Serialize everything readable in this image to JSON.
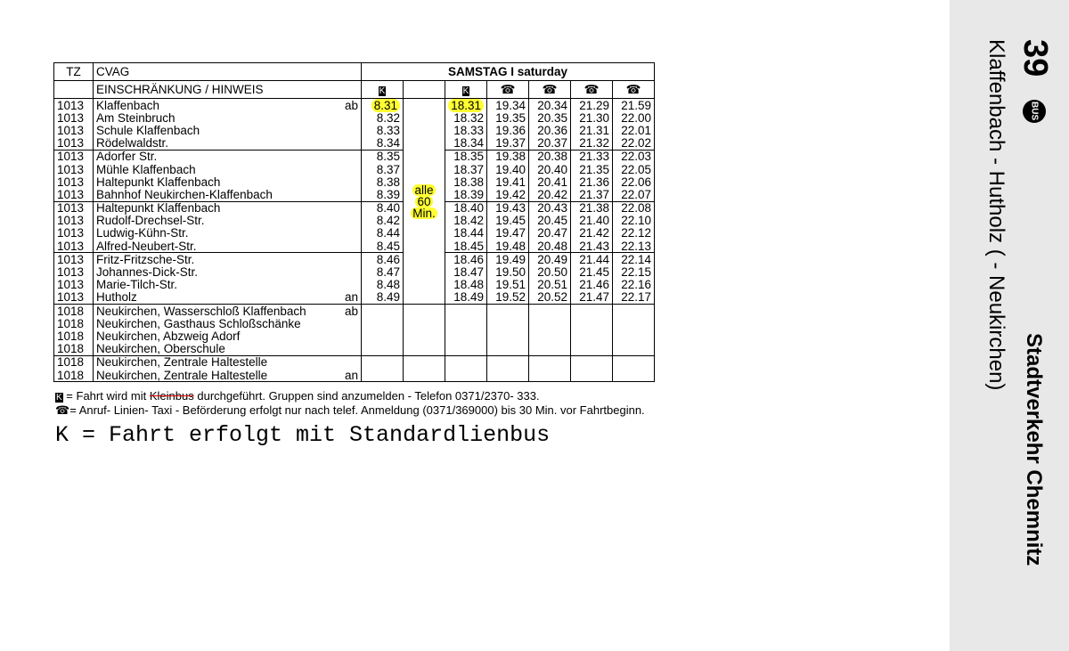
{
  "header": {
    "tz": "TZ",
    "company": "CVAG",
    "day": "SAMSTAG I saturday",
    "hint": "EINSCHRÄNKUNG / HINWEIS",
    "column_symbols": [
      "K",
      "",
      "K",
      "☎",
      "☎",
      "☎",
      "☎"
    ]
  },
  "interval": [
    "alle",
    "60",
    "Min."
  ],
  "highlight_color": "#ffff33",
  "stops": [
    {
      "tz": "1013",
      "name": "Klaffenbach",
      "mark": "ab",
      "times": [
        "8.31",
        "18.31",
        "19.34",
        "20.34",
        "21.29",
        "21.59"
      ]
    },
    {
      "tz": "1013",
      "name": "Am Steinbruch",
      "mark": "",
      "times": [
        "8.32",
        "18.32",
        "19.35",
        "20.35",
        "21.30",
        "22.00"
      ]
    },
    {
      "tz": "1013",
      "name": "Schule Klaffenbach",
      "mark": "",
      "times": [
        "8.33",
        "18.33",
        "19.36",
        "20.36",
        "21.31",
        "22.01"
      ]
    },
    {
      "tz": "1013",
      "name": "Rödelwaldstr.",
      "mark": "",
      "times": [
        "8.34",
        "18.34",
        "19.37",
        "20.37",
        "21.32",
        "22.02"
      ]
    },
    {
      "tz": "1013",
      "name": "Adorfer Str.",
      "mark": "",
      "times": [
        "8.35",
        "18.35",
        "19.38",
        "20.38",
        "21.33",
        "22.03"
      ]
    },
    {
      "tz": "1013",
      "name": "Mühle Klaffenbach",
      "mark": "",
      "times": [
        "8.37",
        "18.37",
        "19.40",
        "20.40",
        "21.35",
        "22.05"
      ]
    },
    {
      "tz": "1013",
      "name": "Haltepunkt Klaffenbach",
      "mark": "",
      "times": [
        "8.38",
        "18.38",
        "19.41",
        "20.41",
        "21.36",
        "22.06"
      ]
    },
    {
      "tz": "1013",
      "name": "Bahnhof Neukirchen-Klaffenbach",
      "mark": "",
      "times": [
        "8.39",
        "18.39",
        "19.42",
        "20.42",
        "21.37",
        "22.07"
      ]
    },
    {
      "tz": "1013",
      "name": "Haltepunkt Klaffenbach",
      "mark": "",
      "times": [
        "8.40",
        "18.40",
        "19.43",
        "20.43",
        "21.38",
        "22.08"
      ]
    },
    {
      "tz": "1013",
      "name": "Rudolf-Drechsel-Str.",
      "mark": "",
      "times": [
        "8.42",
        "18.42",
        "19.45",
        "20.45",
        "21.40",
        "22.10"
      ]
    },
    {
      "tz": "1013",
      "name": "Ludwig-Kühn-Str.",
      "mark": "",
      "times": [
        "8.44",
        "18.44",
        "19.47",
        "20.47",
        "21.42",
        "22.12"
      ]
    },
    {
      "tz": "1013",
      "name": "Alfred-Neubert-Str.",
      "mark": "",
      "times": [
        "8.45",
        "18.45",
        "19.48",
        "20.48",
        "21.43",
        "22.13"
      ]
    },
    {
      "tz": "1013",
      "name": "Fritz-Fritzsche-Str.",
      "mark": "",
      "times": [
        "8.46",
        "18.46",
        "19.49",
        "20.49",
        "21.44",
        "22.14"
      ]
    },
    {
      "tz": "1013",
      "name": "Johannes-Dick-Str.",
      "mark": "",
      "times": [
        "8.47",
        "18.47",
        "19.50",
        "20.50",
        "21.45",
        "22.15"
      ]
    },
    {
      "tz": "1013",
      "name": "Marie-Tilch-Str.",
      "mark": "",
      "times": [
        "8.48",
        "18.48",
        "19.51",
        "20.51",
        "21.46",
        "22.16"
      ]
    },
    {
      "tz": "1013",
      "name": "Hutholz",
      "mark": "an",
      "times": [
        "8.49",
        "18.49",
        "19.52",
        "20.52",
        "21.47",
        "22.17"
      ]
    },
    {
      "tz": "1018",
      "name": "Neukirchen, Wasserschloß Klaffenbach",
      "mark": "ab",
      "times": [
        "",
        "",
        "",
        "",
        "",
        ""
      ]
    },
    {
      "tz": "1018",
      "name": "Neukirchen, Gasthaus Schloßschänke",
      "mark": "",
      "times": [
        "",
        "",
        "",
        "",
        "",
        ""
      ]
    },
    {
      "tz": "1018",
      "name": "Neukirchen, Abzweig Adorf",
      "mark": "",
      "times": [
        "",
        "",
        "",
        "",
        "",
        ""
      ]
    },
    {
      "tz": "1018",
      "name": "Neukirchen, Oberschule",
      "mark": "",
      "times": [
        "",
        "",
        "",
        "",
        "",
        ""
      ]
    },
    {
      "tz": "1018",
      "name": "Neukirchen, Zentrale Haltestelle",
      "mark": "",
      "times": [
        "",
        "",
        "",
        "",
        "",
        ""
      ]
    },
    {
      "tz": "1018",
      "name": "Neukirchen, Zentrale Haltestelle",
      "mark": "an",
      "times": [
        "",
        "",
        "",
        "",
        "",
        ""
      ]
    }
  ],
  "footnotes": {
    "k_symbol": "K",
    "k_pre": "= Fahrt wird mit",
    "k_struck": "Kleinbus",
    "k_post": "durchgeführt. Gruppen sind anzumelden -  Telefon 0371/2370- 333.",
    "phone_symbol": "☎",
    "phone_text": "= Anruf- Linien- Taxi -  Beförderung erfolgt nur nach telef. Anmeldung (0371/369000) bis 30 Min. vor Fahrtbeginn.",
    "handwritten_note": "K = Fahrt erfolgt mit Standardlienbus"
  },
  "sidebar": {
    "line": "39",
    "bus_badge": "BUS",
    "route": "Klaffenbach - Hutholz ( - Neukirchen)",
    "operator": "Stadtverkehr Chemnitz"
  }
}
